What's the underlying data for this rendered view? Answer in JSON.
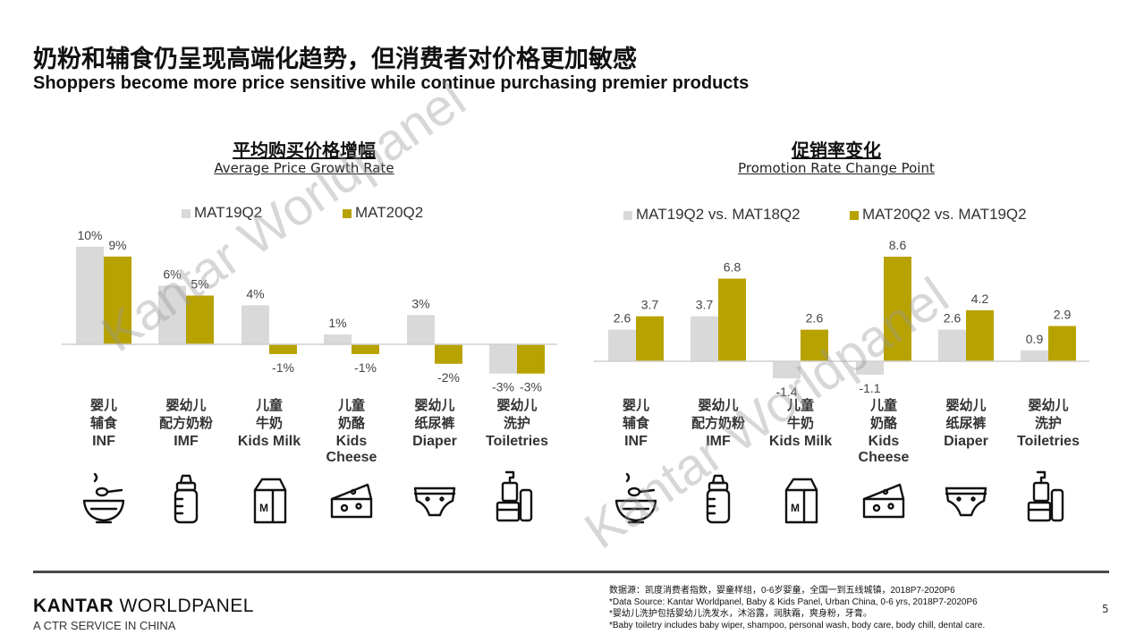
{
  "title_cn": "奶粉和辅食仍呈现高端化趋势，但消费者对价格更加敏感",
  "title_en": "Shoppers become more price sensitive while continue purchasing premier products",
  "colors": {
    "series1": "#d9d9d9",
    "series2": "#b8a200",
    "axis": "#d0d0d0"
  },
  "chart_data": [
    {
      "type": "bar",
      "title_cn": "平均购买价格增幅",
      "title_en": "Average Price Growth Rate",
      "categories": [
        {
          "cn1": "婴儿",
          "cn2": "辅食",
          "en": "INF",
          "icon": "bowl-icon"
        },
        {
          "cn1": "婴幼儿",
          "cn2": "配方奶粉",
          "en": "IMF",
          "icon": "baby-bottle-icon"
        },
        {
          "cn1": "儿童",
          "cn2": "牛奶",
          "en": "Kids Milk",
          "icon": "milk-carton-icon"
        },
        {
          "cn1": "儿童",
          "cn2": "奶酪",
          "en": "Kids Cheese",
          "icon": "cheese-icon"
        },
        {
          "cn1": "婴幼儿",
          "cn2": "纸尿裤",
          "en": "Diaper",
          "icon": "diaper-icon"
        },
        {
          "cn1": "婴幼儿",
          "cn2": "洗护",
          "en": "Toiletries",
          "icon": "toiletries-icon"
        }
      ],
      "series": [
        {
          "name": "MAT19Q2",
          "values": [
            10,
            6,
            4,
            1,
            3,
            -3
          ],
          "labels": [
            "10%",
            "6%",
            "4%",
            "1%",
            "3%",
            "-3%"
          ]
        },
        {
          "name": "MAT20Q2",
          "values": [
            9,
            5,
            -1,
            -1,
            -2,
            -3
          ],
          "labels": [
            "9%",
            "5%",
            "-1%",
            "-1%",
            "-2%",
            "-3%"
          ]
        }
      ]
    },
    {
      "type": "bar",
      "title_cn": "促销率变化",
      "title_en": "Promotion Rate Change Point",
      "categories": [
        {
          "cn1": "婴儿",
          "cn2": "辅食",
          "en": "INF",
          "icon": "bowl-icon"
        },
        {
          "cn1": "婴幼儿",
          "cn2": "配方奶粉",
          "en": "IMF",
          "icon": "baby-bottle-icon"
        },
        {
          "cn1": "儿童",
          "cn2": "牛奶",
          "en": "Kids Milk",
          "icon": "milk-carton-icon"
        },
        {
          "cn1": "儿童",
          "cn2": "奶酪",
          "en": "Kids Cheese",
          "icon": "cheese-icon"
        },
        {
          "cn1": "婴幼儿",
          "cn2": "纸尿裤",
          "en": "Diaper",
          "icon": "diaper-icon"
        },
        {
          "cn1": "婴幼儿",
          "cn2": "洗护",
          "en": "Toiletries",
          "icon": "toiletries-icon"
        }
      ],
      "series": [
        {
          "name": "MAT19Q2 vs. MAT18Q2",
          "values": [
            2.6,
            3.7,
            -1.4,
            -1.1,
            2.6,
            0.9
          ],
          "labels": [
            "2.6",
            "3.7",
            "-1.4",
            "-1.1",
            "2.6",
            "0.9"
          ]
        },
        {
          "name": "MAT20Q2 vs. MAT19Q2",
          "values": [
            3.7,
            6.8,
            2.6,
            8.6,
            4.2,
            2.9
          ],
          "labels": [
            "3.7",
            "6.8",
            "2.6",
            "8.6",
            "4.2",
            "2.9"
          ]
        }
      ]
    }
  ],
  "footer": {
    "brand_bold": "KANTAR",
    "brand_rest": " WORLDPANEL",
    "tagline": "A CTR SERVICE IN CHINA",
    "notes": [
      "数据源：凯度消费者指数，婴童样组，0-6岁婴童，全国一到五线城镇，2018P7-2020P6",
      "*Data Source: Kantar Worldpanel, Baby & Kids Panel, Urban China, 0-6 yrs, 2018P7-2020P6",
      "*婴幼儿洗护包括婴幼儿洗发水，沐浴露，润肤霜，爽身粉，牙膏。",
      "*Baby toiletry includes baby wiper, shampoo, personal wash, body care, body chill, dental care."
    ],
    "page_number": "5"
  },
  "watermark": "Kantar Worldpanel"
}
